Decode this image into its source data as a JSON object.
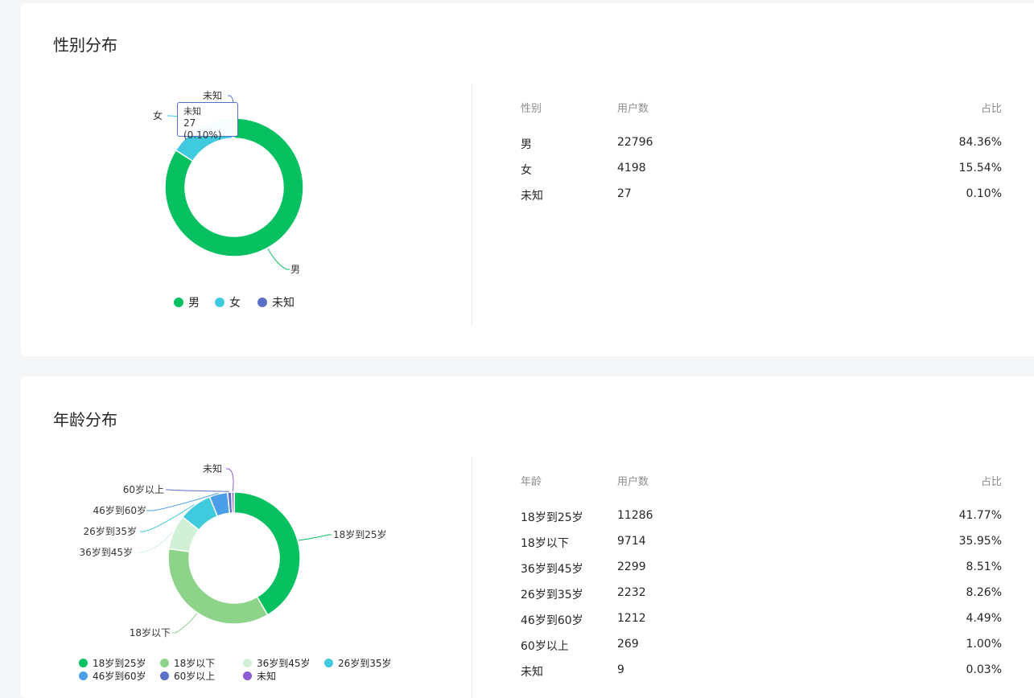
{
  "gender": {
    "title": "性别分布",
    "table": {
      "headers": [
        "性别",
        "用户数",
        "占比"
      ],
      "rows": [
        {
          "label": "男",
          "count": "22796",
          "pct": "84.36%"
        },
        {
          "label": "女",
          "count": "4198",
          "pct": "15.54%"
        },
        {
          "label": "未知",
          "count": "27",
          "pct": "0.10%"
        }
      ]
    },
    "tooltip": {
      "name": "未知",
      "value": "27 (0.10%)"
    }
  },
  "age": {
    "title": "年龄分布",
    "table": {
      "headers": [
        "年龄",
        "用户数",
        "占比"
      ],
      "rows": [
        {
          "label": "18岁到25岁",
          "count": "11286",
          "pct": "41.77%"
        },
        {
          "label": "18岁以下",
          "count": "9714",
          "pct": "35.95%"
        },
        {
          "label": "36岁到45岁",
          "count": "2299",
          "pct": "8.51%"
        },
        {
          "label": "26岁到35岁",
          "count": "2232",
          "pct": "8.26%"
        },
        {
          "label": "46岁到60岁",
          "count": "1212",
          "pct": "4.49%"
        },
        {
          "label": "60岁以上",
          "count": "269",
          "pct": "1.00%"
        },
        {
          "label": "未知",
          "count": "9",
          "pct": "0.03%"
        }
      ]
    }
  },
  "chart_data": [
    {
      "type": "pie",
      "title": "性别分布",
      "categories": [
        "男",
        "女",
        "未知"
      ],
      "values": [
        22796,
        4198,
        27
      ],
      "colors": [
        "#07c160",
        "#3fcade",
        "#5c6fc9"
      ],
      "donut": true,
      "legend": "bottom"
    },
    {
      "type": "pie",
      "title": "年龄分布",
      "categories": [
        "18岁到25岁",
        "18岁以下",
        "36岁到45岁",
        "26岁到35岁",
        "46岁到60岁",
        "60岁以上",
        "未知"
      ],
      "values": [
        11286,
        9714,
        2299,
        2232,
        1212,
        269,
        9
      ],
      "colors": [
        "#07c160",
        "#8dd48a",
        "#d2f0d6",
        "#3fcade",
        "#4b9fe8",
        "#5c6fc9",
        "#8e5bd6"
      ],
      "donut": true,
      "legend": "bottom"
    }
  ]
}
